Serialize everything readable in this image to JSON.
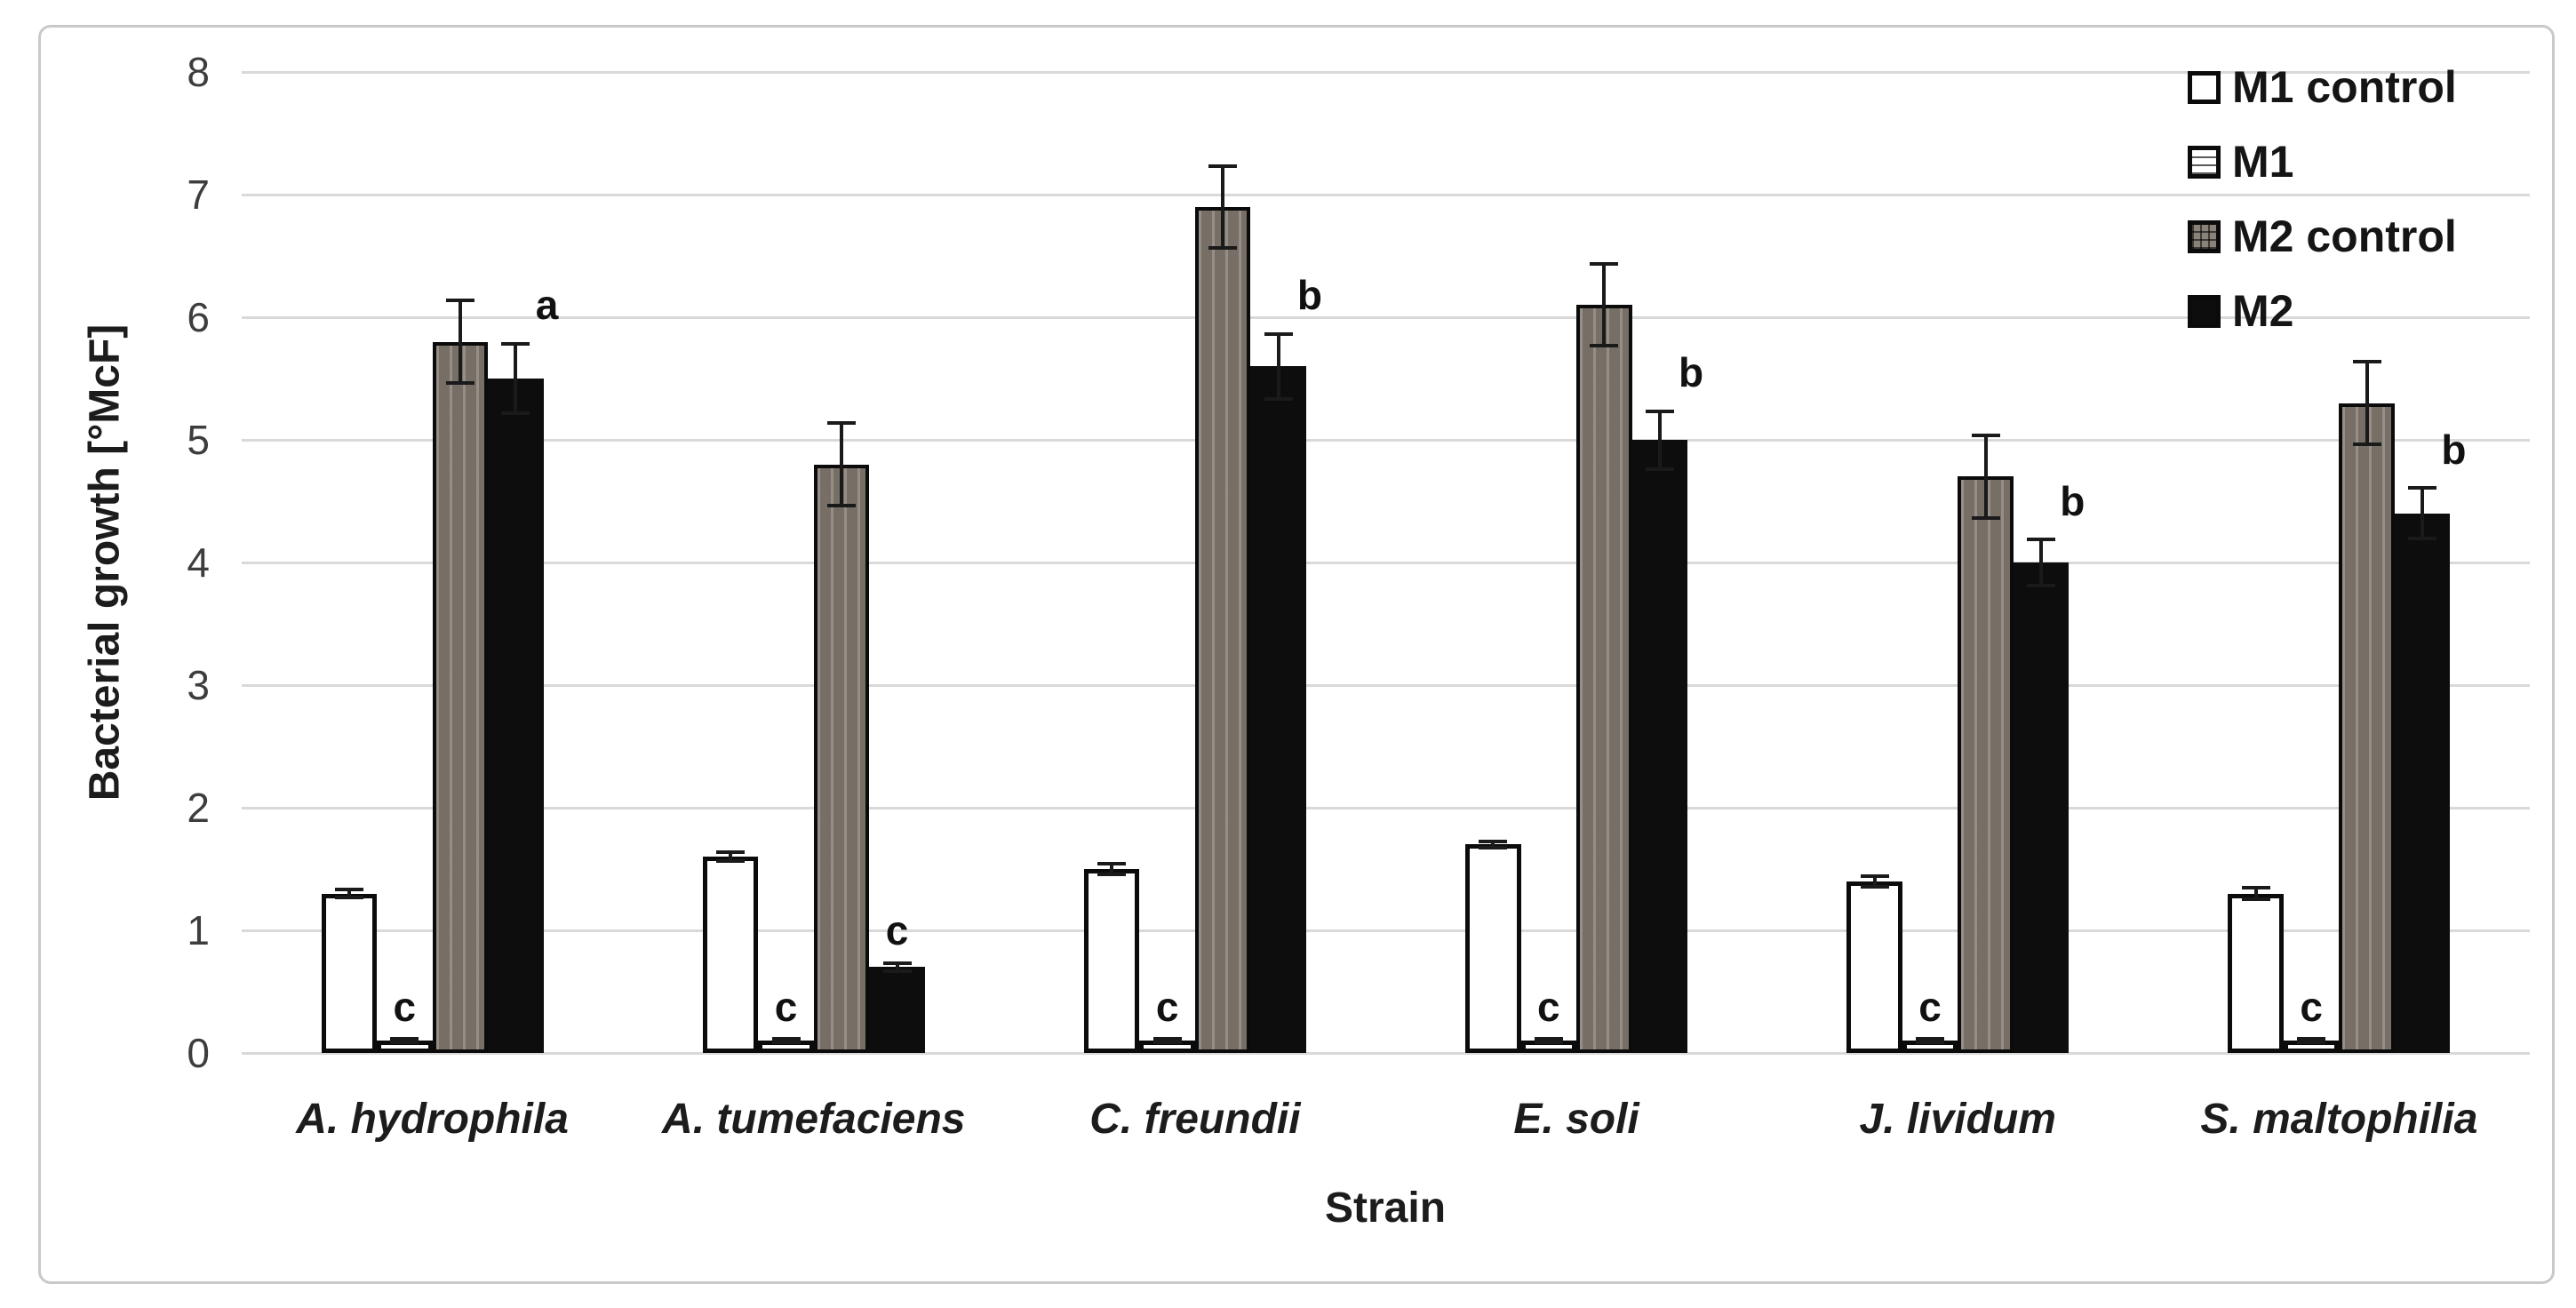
{
  "figure": {
    "background": "#ffffff",
    "border_color": "#c9c9c9"
  },
  "chart_data": {
    "type": "bar",
    "title": "",
    "xlabel": "Strain",
    "ylabel": "Bacterial growth [°McF]",
    "ylim": [
      0,
      8
    ],
    "yticks": [
      0,
      1,
      2,
      3,
      4,
      5,
      6,
      7,
      8
    ],
    "grid": true,
    "gridline_color": "#d9d9d9",
    "legend_position": "top-right",
    "categories": [
      "A. hydrophila",
      "A. tumefaciens",
      "C. freundii",
      "E. soli",
      "J. lividum",
      "S. maltophilia"
    ],
    "series": [
      {
        "name": "M1 control",
        "fill": "white",
        "swatch": "swatch-white",
        "values": [
          1.3,
          1.6,
          1.5,
          1.7,
          1.4,
          1.3
        ],
        "errors": [
          0.05,
          0.05,
          0.06,
          0.04,
          0.06,
          0.06
        ]
      },
      {
        "name": "M1",
        "fill": "white-lined",
        "swatch": "swatch-lined",
        "values": [
          0.1,
          0.1,
          0.1,
          0.1,
          0.1,
          0.1
        ],
        "errors": [
          0.03,
          0.03,
          0.03,
          0.03,
          0.03,
          0.03
        ]
      },
      {
        "name": "M2 control",
        "fill": "gray-striped",
        "swatch": "swatch-grid",
        "values": [
          5.8,
          4.8,
          6.9,
          6.1,
          4.7,
          5.3
        ],
        "errors": [
          0.35,
          0.35,
          0.35,
          0.35,
          0.35,
          0.35
        ]
      },
      {
        "name": "M2",
        "fill": "black",
        "swatch": "swatch-black",
        "values": [
          5.5,
          0.7,
          5.6,
          5.0,
          4.0,
          4.4
        ],
        "errors": [
          0.3,
          0.05,
          0.28,
          0.25,
          0.2,
          0.22
        ]
      }
    ],
    "annotations": [
      {
        "group": 0,
        "series": 1,
        "text": "c"
      },
      {
        "group": 0,
        "series": 3,
        "text": "a"
      },
      {
        "group": 1,
        "series": 1,
        "text": "c"
      },
      {
        "group": 1,
        "series": 3,
        "text": "c"
      },
      {
        "group": 2,
        "series": 1,
        "text": "c"
      },
      {
        "group": 2,
        "series": 3,
        "text": "b"
      },
      {
        "group": 3,
        "series": 1,
        "text": "c"
      },
      {
        "group": 3,
        "series": 3,
        "text": "b"
      },
      {
        "group": 4,
        "series": 1,
        "text": "c"
      },
      {
        "group": 4,
        "series": 3,
        "text": "b"
      },
      {
        "group": 5,
        "series": 1,
        "text": "c"
      },
      {
        "group": 5,
        "series": 3,
        "text": "b"
      }
    ],
    "colors": {
      "gray_bar": "#776f66",
      "black_bar": "#0d0d0d",
      "white_bar": "#ffffff"
    }
  }
}
